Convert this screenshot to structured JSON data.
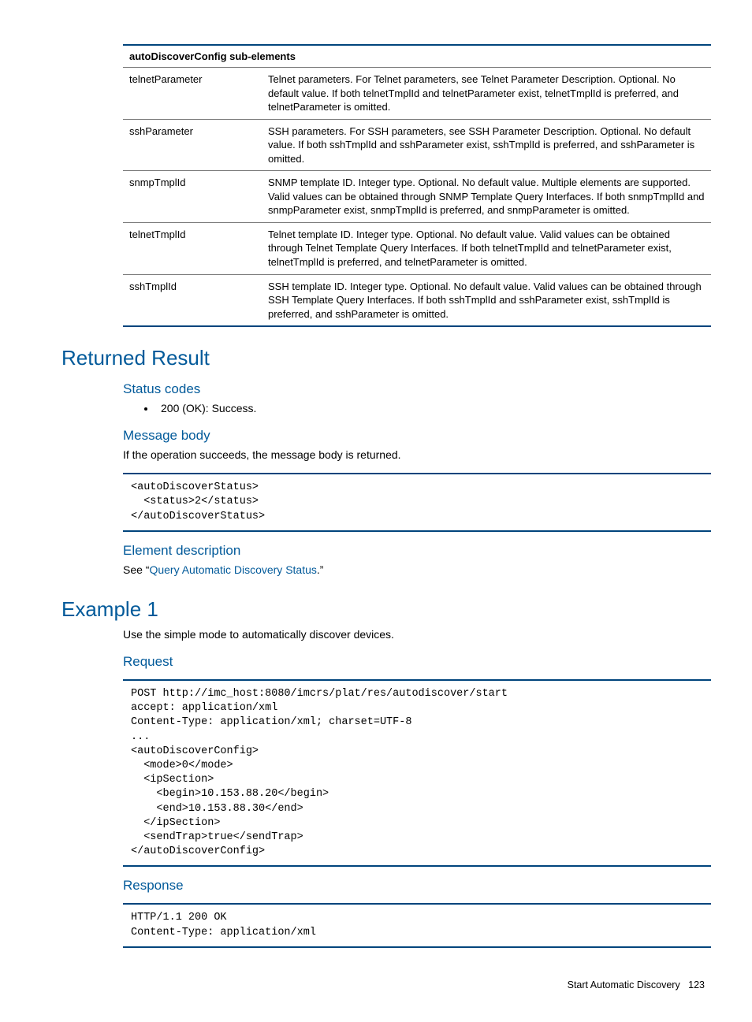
{
  "table": {
    "header": "autoDiscoverConfig sub-elements",
    "rows": [
      {
        "name": "telnetParameter",
        "desc": "Telnet parameters. For Telnet parameters, see Telnet Parameter Description. Optional. No default value. If both telnetTmplId and telnetParameter exist, telnetTmplId is preferred, and telnetParameter is omitted."
      },
      {
        "name": "sshParameter",
        "desc": "SSH parameters. For SSH parameters, see SSH Parameter Description. Optional. No default value. If both sshTmplId and sshParameter exist, sshTmplId is preferred, and sshParameter is omitted."
      },
      {
        "name": "snmpTmplId",
        "desc": "SNMP template ID. Integer type. Optional. No default value. Multiple elements are supported. Valid values can be obtained through SNMP Template Query Interfaces. If both snmpTmplId and snmpParameter exist, snmpTmplId is preferred, and snmpParameter is omitted."
      },
      {
        "name": "telnetTmplId",
        "desc": "Telnet template ID. Integer type. Optional. No default value. Valid values can be obtained through Telnet Template Query Interfaces. If both telnetTmplId and telnetParameter exist, telnetTmplId is preferred, and telnetParameter is omitted."
      },
      {
        "name": "sshTmplId",
        "desc": "SSH template ID. Integer type. Optional. No default value. Valid values can be obtained through SSH Template Query Interfaces. If both sshTmplId and sshParameter exist, sshTmplId is preferred, and sshParameter is omitted."
      }
    ]
  },
  "sections": {
    "returned_result": "Returned Result",
    "status_codes": "Status codes",
    "status_item": "200 (OK): Success.",
    "message_body": "Message body",
    "message_body_text": "If the operation succeeds, the message body is returned.",
    "code1": "<autoDiscoverStatus>\n  <status>2</status>\n</autoDiscoverStatus>",
    "element_desc": "Element description",
    "element_desc_pre": "See “",
    "element_desc_link": "Query Automatic Discovery Status",
    "element_desc_post": ".”",
    "example1": "Example 1",
    "example1_text": "Use the simple mode to automatically discover devices.",
    "request": "Request",
    "code2": "POST http://imc_host:8080/imcrs/plat/res/autodiscover/start\naccept: application/xml\nContent-Type: application/xml; charset=UTF-8\n...\n<autoDiscoverConfig>\n  <mode>0</mode>\n  <ipSection>\n    <begin>10.153.88.20</begin>\n    <end>10.153.88.30</end>\n  </ipSection>\n  <sendTrap>true</sendTrap>\n</autoDiscoverConfig>",
    "response": "Response",
    "code3": "HTTP/1.1 200 OK\nContent-Type: application/xml"
  },
  "footer": {
    "label": "Start Automatic Discovery",
    "page": "123"
  },
  "colors": {
    "accent": "#00447c",
    "heading": "#025a9a"
  }
}
